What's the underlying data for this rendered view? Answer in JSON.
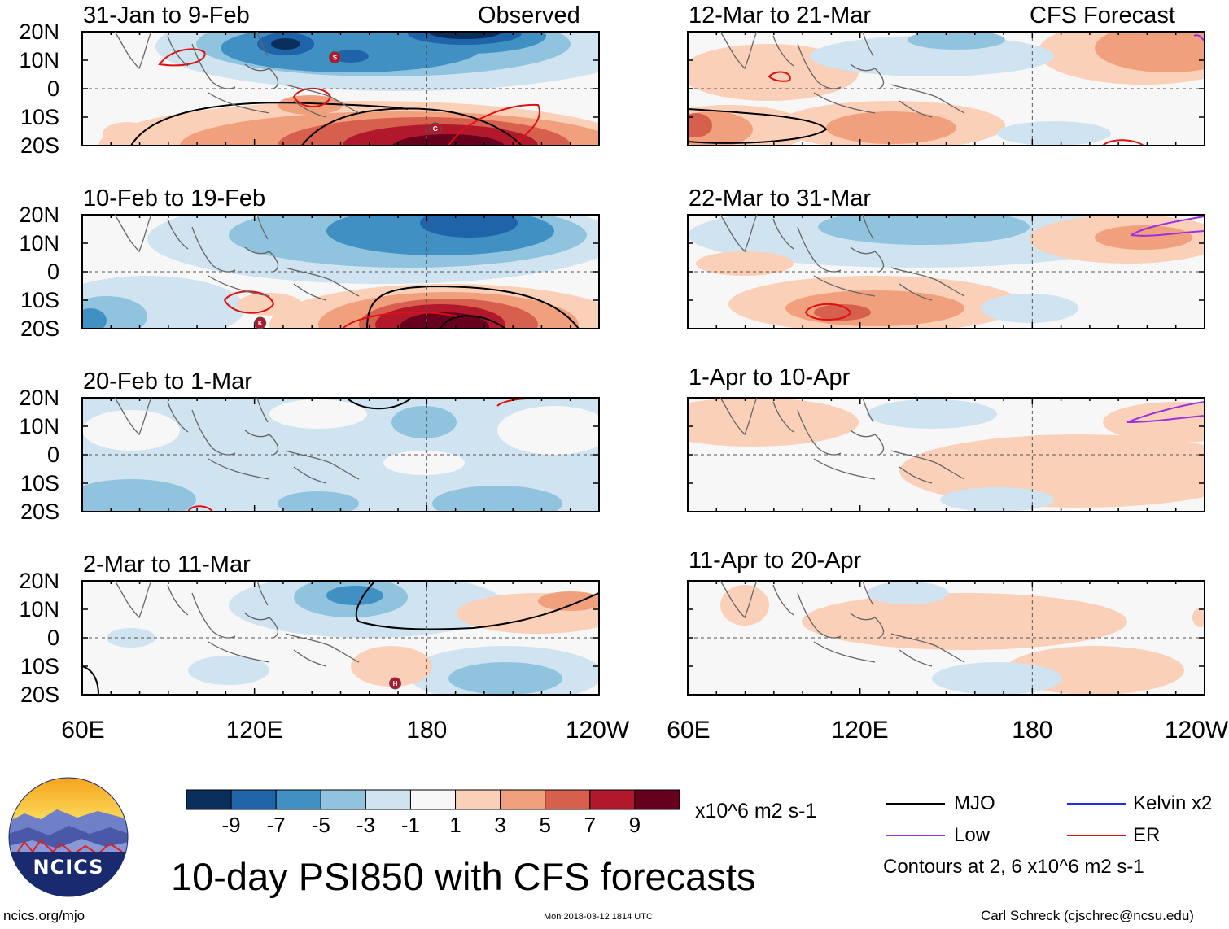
{
  "panel_titles": {
    "left": [
      "31-Jan to 9-Feb",
      "10-Feb to 19-Feb",
      "20-Feb to 1-Mar",
      "2-Mar to 11-Mar"
    ],
    "right": [
      "12-Mar to 21-Mar",
      "22-Mar to 31-Mar",
      "1-Apr to 10-Apr",
      "11-Apr to 20-Apr"
    ]
  },
  "column_labels": {
    "observed": "Observed",
    "forecast": "CFS Forecast"
  },
  "lat_ticks": [
    "20N",
    "10N",
    "0",
    "10S",
    "20S"
  ],
  "lon_ticks": [
    "60E",
    "120E",
    "180",
    "120W"
  ],
  "storm_markers": [
    {
      "panel": "left-0",
      "label": "S",
      "lon": 148,
      "lat": 11
    },
    {
      "panel": "left-0",
      "label": "G",
      "lon": 183,
      "lat": -14
    },
    {
      "panel": "left-1",
      "label": "K",
      "lon": 122,
      "lat": -18
    },
    {
      "panel": "left-3",
      "label": "H",
      "lon": 169,
      "lat": -16
    }
  ],
  "colorbar": {
    "ticks": [
      "-9",
      "-7",
      "-5",
      "-3",
      "-1",
      "1",
      "3",
      "5",
      "7",
      "9"
    ],
    "colors": [
      "#0b2f5c",
      "#1f63a8",
      "#4090c4",
      "#90c3de",
      "#d0e3f0",
      "#f7f7f7",
      "#fbd0b8",
      "#f0a07c",
      "#d6604d",
      "#b2182b",
      "#67001f"
    ],
    "units": "x10^6 m2 s-1"
  },
  "legend": {
    "items": [
      {
        "label": "MJO",
        "color": "#000000"
      },
      {
        "label": "Kelvin x2",
        "color": "#1f2ee6"
      },
      {
        "label": "Low",
        "color": "#9b30e0"
      },
      {
        "label": "ER",
        "color": "#e01010"
      }
    ],
    "note": "Contours at 2, 6 x10^6 m2 s-1"
  },
  "title": "10-day PSI850 with CFS forecasts",
  "logo_text": "NCICS",
  "footer": {
    "url": "ncics.org/mjo",
    "timestamp": "Mon 2018-03-12 1814 UTC",
    "credit": "Carl Schreck (cjschrec@ncsu.edu)"
  },
  "chart_data": {
    "type": "heatmap",
    "variable": "10-day mean 850-hPa streamfunction anomaly (PSI850)",
    "units": "x10^6 m2 s-1",
    "x_range_lon": [
      60,
      240
    ],
    "y_range_lat": [
      -20,
      20
    ],
    "panels": [
      {
        "period": "31-Jan to 9-Feb",
        "source": "Observed",
        "min": -10,
        "max": 10
      },
      {
        "period": "10-Feb to 19-Feb",
        "source": "Observed",
        "min": -8,
        "max": 10
      },
      {
        "period": "20-Feb to 1-Mar",
        "source": "Observed",
        "min": -6,
        "max": 2
      },
      {
        "period": "2-Mar to 11-Mar",
        "source": "Observed",
        "min": -6,
        "max": 6
      },
      {
        "period": "12-Mar to 21-Mar",
        "source": "CFS Forecast",
        "min": -2,
        "max": 6
      },
      {
        "period": "22-Mar to 31-Mar",
        "source": "CFS Forecast",
        "min": -4,
        "max": 5
      },
      {
        "period": "1-Apr to 10-Apr",
        "source": "CFS Forecast",
        "min": -1,
        "max": 2
      },
      {
        "period": "11-Apr to 20-Apr",
        "source": "CFS Forecast",
        "min": -2,
        "max": 3
      }
    ]
  }
}
